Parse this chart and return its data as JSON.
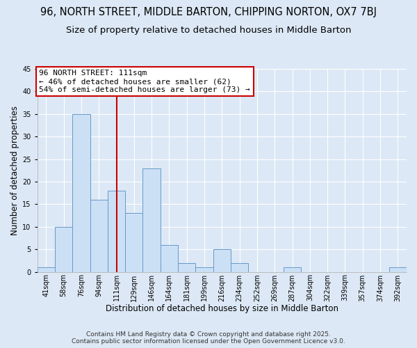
{
  "title": "96, NORTH STREET, MIDDLE BARTON, CHIPPING NORTON, OX7 7BJ",
  "subtitle": "Size of property relative to detached houses in Middle Barton",
  "xlabel": "Distribution of detached houses by size in Middle Barton",
  "ylabel": "Number of detached properties",
  "bin_labels": [
    "41sqm",
    "58sqm",
    "76sqm",
    "94sqm",
    "111sqm",
    "129sqm",
    "146sqm",
    "164sqm",
    "181sqm",
    "199sqm",
    "216sqm",
    "234sqm",
    "252sqm",
    "269sqm",
    "287sqm",
    "304sqm",
    "322sqm",
    "339sqm",
    "357sqm",
    "374sqm",
    "392sqm"
  ],
  "bar_values": [
    1,
    10,
    35,
    16,
    18,
    13,
    23,
    6,
    2,
    1,
    5,
    2,
    0,
    0,
    1,
    0,
    0,
    0,
    0,
    0,
    1
  ],
  "bar_color": "#cce0f5",
  "bar_edge_color": "#6699cc",
  "vline_x_idx": 4,
  "vline_color": "#cc0000",
  "annotation_title": "96 NORTH STREET: 111sqm",
  "annotation_line1": "← 46% of detached houses are smaller (62)",
  "annotation_line2": "54% of semi-detached houses are larger (73) →",
  "annotation_box_facecolor": "#ffffff",
  "annotation_box_edgecolor": "#cc0000",
  "ylim": [
    0,
    45
  ],
  "yticks": [
    0,
    5,
    10,
    15,
    20,
    25,
    30,
    35,
    40,
    45
  ],
  "footnote1": "Contains HM Land Registry data © Crown copyright and database right 2025.",
  "footnote2": "Contains public sector information licensed under the Open Government Licence v3.0.",
  "bg_color": "#dce8f5",
  "plot_bg_color": "#dce8f5",
  "grid_color": "#ffffff",
  "title_fontsize": 10.5,
  "subtitle_fontsize": 9.5,
  "axis_label_fontsize": 8.5,
  "tick_fontsize": 7,
  "annotation_fontsize": 8,
  "footnote_fontsize": 6.5
}
